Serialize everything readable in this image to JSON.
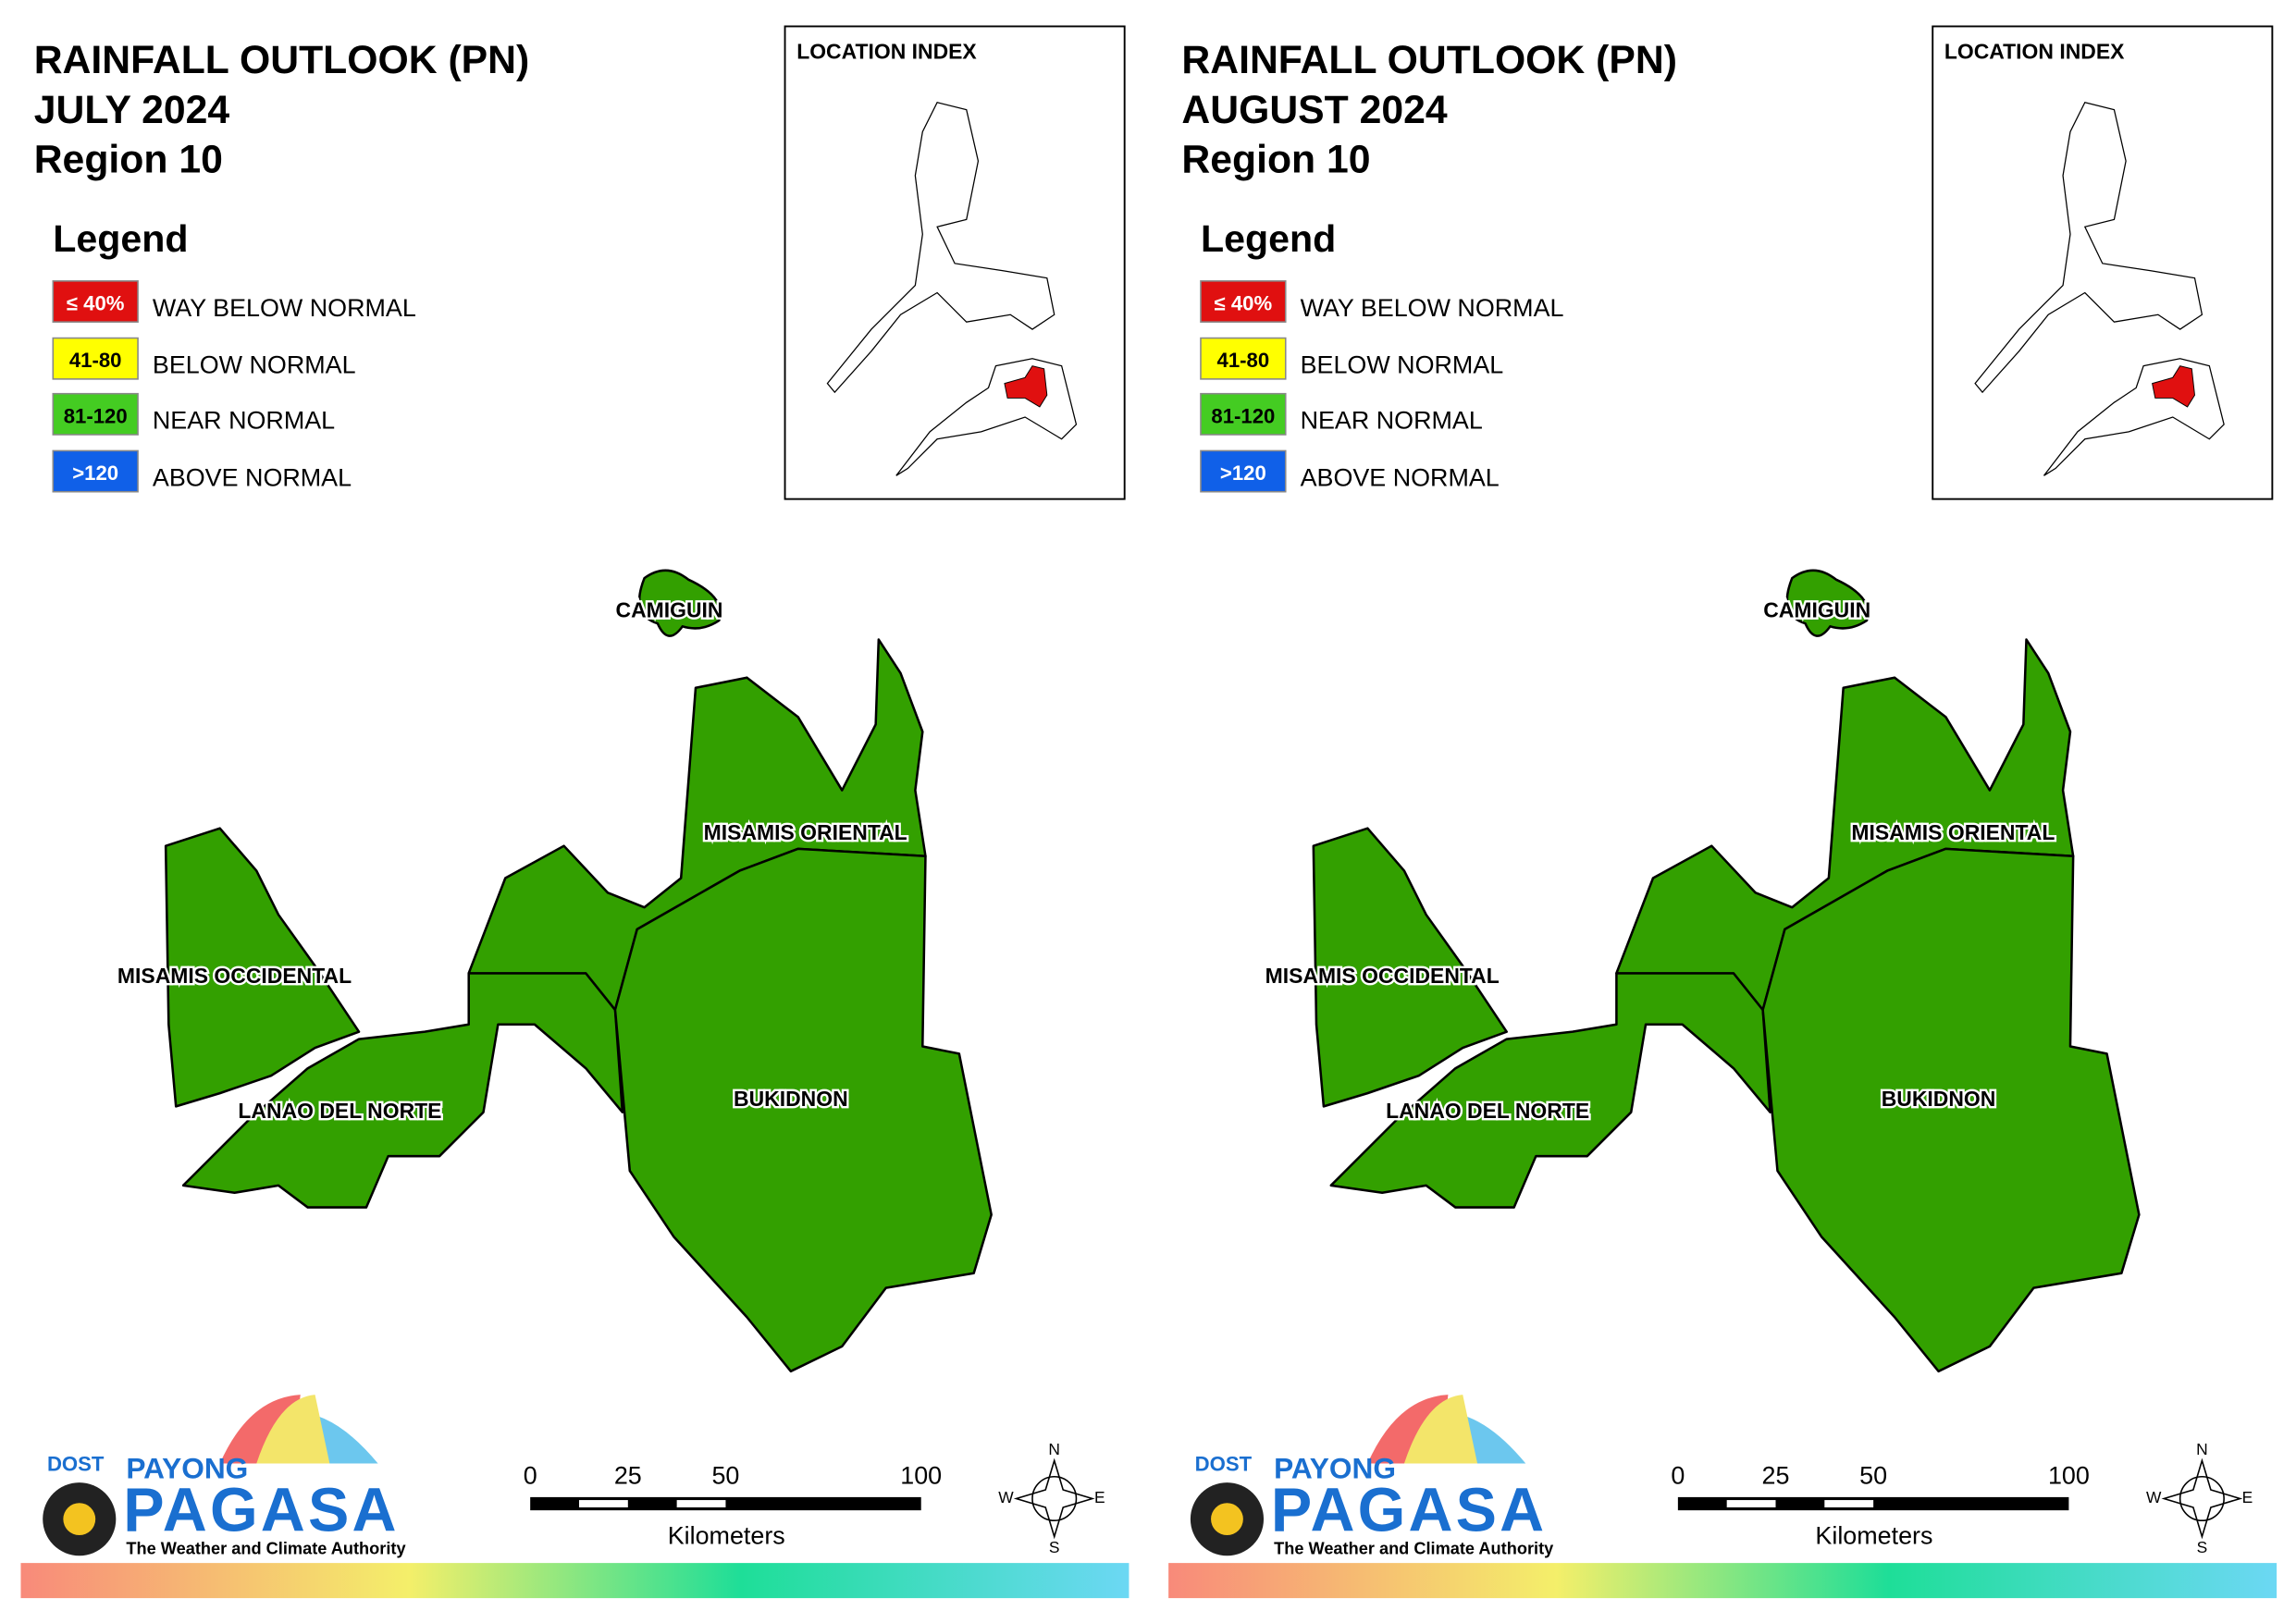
{
  "panels": [
    {
      "title": [
        "RAINFALL OUTLOOK (PN)",
        "JULY 2024",
        "Region 10"
      ],
      "legend_title": "Legend",
      "legend": [
        {
          "code": "≤ 40%",
          "label": "WAY BELOW NORMAL",
          "color": "#e01010"
        },
        {
          "code": "41-80",
          "label": "BELOW NORMAL",
          "color": "#ffff00"
        },
        {
          "code": "81-120",
          "label": "NEAR NORMAL",
          "color": "#44cc22"
        },
        {
          "code": ">120",
          "label": "ABOVE NORMAL",
          "color": "#1060e8"
        }
      ],
      "location_index": "LOCATION INDEX",
      "provinces": [
        {
          "name": "CAMIGUIN",
          "color": "#33a000"
        },
        {
          "name": "MISAMIS OCCIDENTAL",
          "color": "#33a000"
        },
        {
          "name": "LANAO DEL NORTE",
          "color": "#33a000"
        },
        {
          "name": "MISAMIS ORIENTAL",
          "color": "#33a000"
        },
        {
          "name": "BUKIDNON",
          "color": "#33a000"
        }
      ],
      "scale_bar": {
        "ticks": [
          0,
          25,
          50,
          100
        ],
        "unit": "Kilometers"
      },
      "compass": [
        "N",
        "E",
        "S",
        "W"
      ],
      "logo": [
        "DOST",
        "PAYONG",
        "PAGASA",
        "The Weather and Climate Authority"
      ]
    },
    {
      "title": [
        "RAINFALL OUTLOOK (PN)",
        "AUGUST 2024",
        "Region 10"
      ],
      "legend_title": "Legend",
      "legend": [
        {
          "code": "≤ 40%",
          "label": "WAY BELOW NORMAL",
          "color": "#e01010"
        },
        {
          "code": "41-80",
          "label": "BELOW NORMAL",
          "color": "#ffff00"
        },
        {
          "code": "81-120",
          "label": "NEAR NORMAL",
          "color": "#44cc22"
        },
        {
          "code": ">120",
          "label": "ABOVE NORMAL",
          "color": "#1060e8"
        }
      ],
      "location_index": "LOCATION INDEX",
      "provinces": [
        {
          "name": "CAMIGUIN",
          "color": "#33a000"
        },
        {
          "name": "MISAMIS OCCIDENTAL",
          "color": "#33a000"
        },
        {
          "name": "LANAO DEL NORTE",
          "color": "#33a000"
        },
        {
          "name": "MISAMIS ORIENTAL",
          "color": "#33a000"
        },
        {
          "name": "BUKIDNON",
          "color": "#33a000"
        }
      ],
      "scale_bar": {
        "ticks": [
          0,
          25,
          50,
          100
        ],
        "unit": "Kilometers"
      },
      "compass": [
        "N",
        "E",
        "S",
        "W"
      ],
      "logo": [
        "DOST",
        "PAYONG",
        "PAGASA",
        "The Weather and Climate Authority"
      ]
    }
  ]
}
